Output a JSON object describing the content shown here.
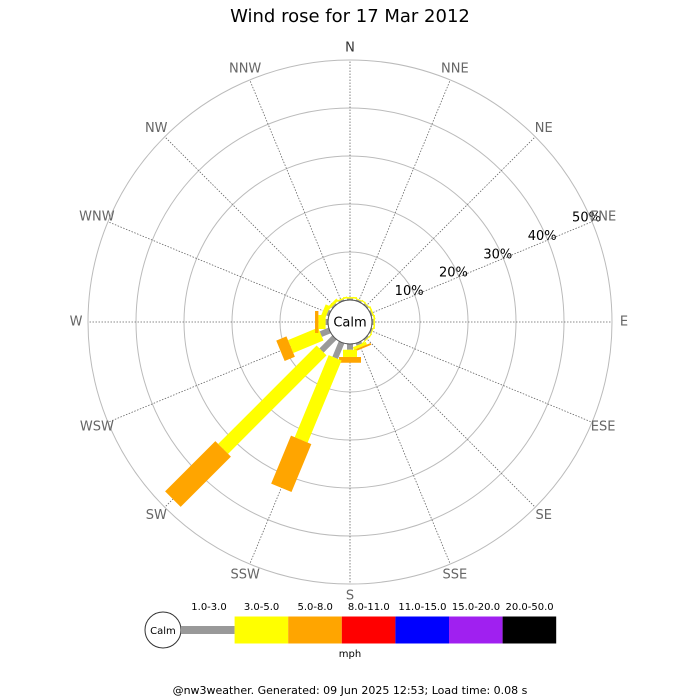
{
  "chart_data": {
    "type": "windrose",
    "title": "Wind rose for 17 Mar 2012",
    "directions": [
      "N",
      "NNE",
      "NE",
      "ENE",
      "E",
      "ESE",
      "SE",
      "SSE",
      "S",
      "SSW",
      "SW",
      "WSW",
      "W",
      "WNW",
      "NW",
      "NNW"
    ],
    "calm_label": "Calm",
    "units": "mph",
    "rlim": [
      0,
      50
    ],
    "rticks": [
      {
        "value": 10,
        "label": "10%"
      },
      {
        "value": 20,
        "label": "20%"
      },
      {
        "value": 30,
        "label": "30%"
      },
      {
        "value": 40,
        "label": "40%"
      },
      {
        "value": 50,
        "label": "50%"
      }
    ],
    "series": [
      {
        "name": "1.0-3.0",
        "color": "#999999",
        "values": [
          0.3,
          0.3,
          0.3,
          0.3,
          0.3,
          0.3,
          0.3,
          0.5,
          1.2,
          3.5,
          3.8,
          2,
          0.5,
          0.5,
          0.3,
          0.3
        ]
      },
      {
        "name": "3.0-5.0",
        "color": "#ffff00",
        "values": [
          0.3,
          0.2,
          0.2,
          0.3,
          0.3,
          0.2,
          0.2,
          0.6,
          1.5,
          18.5,
          29,
          6.8,
          1.5,
          1,
          0.6,
          0.3
        ]
      },
      {
        "name": "5.0-8.0",
        "color": "#ffa500",
        "values": [
          0,
          0,
          0,
          0,
          0,
          0,
          0,
          0.4,
          1.2,
          10.8,
          14.8,
          2.3,
          0.7,
          0,
          0,
          0
        ]
      },
      {
        "name": "8.0-11.0",
        "color": "#ff0000",
        "values": [
          0,
          0,
          0,
          0,
          0,
          0,
          0,
          0,
          0,
          0,
          0,
          0,
          0,
          0,
          0,
          0
        ]
      },
      {
        "name": "11.0-15.0",
        "color": "#0000ff",
        "values": [
          0,
          0,
          0,
          0,
          0,
          0,
          0,
          0,
          0,
          0,
          0,
          0,
          0,
          0,
          0,
          0
        ]
      },
      {
        "name": "15.0-20.0",
        "color": "#a020f0",
        "values": [
          0,
          0,
          0,
          0,
          0,
          0,
          0,
          0,
          0,
          0,
          0,
          0,
          0,
          0,
          0,
          0
        ]
      },
      {
        "name": "20.0-50.0",
        "color": "#000000",
        "values": [
          0,
          0,
          0,
          0,
          0,
          0,
          0,
          0,
          0,
          0,
          0,
          0,
          0,
          0,
          0,
          0
        ]
      }
    ],
    "footer": "@nw3weather. Generated: 09 Jun 2025 12:53; Load time: 0.08 s"
  }
}
